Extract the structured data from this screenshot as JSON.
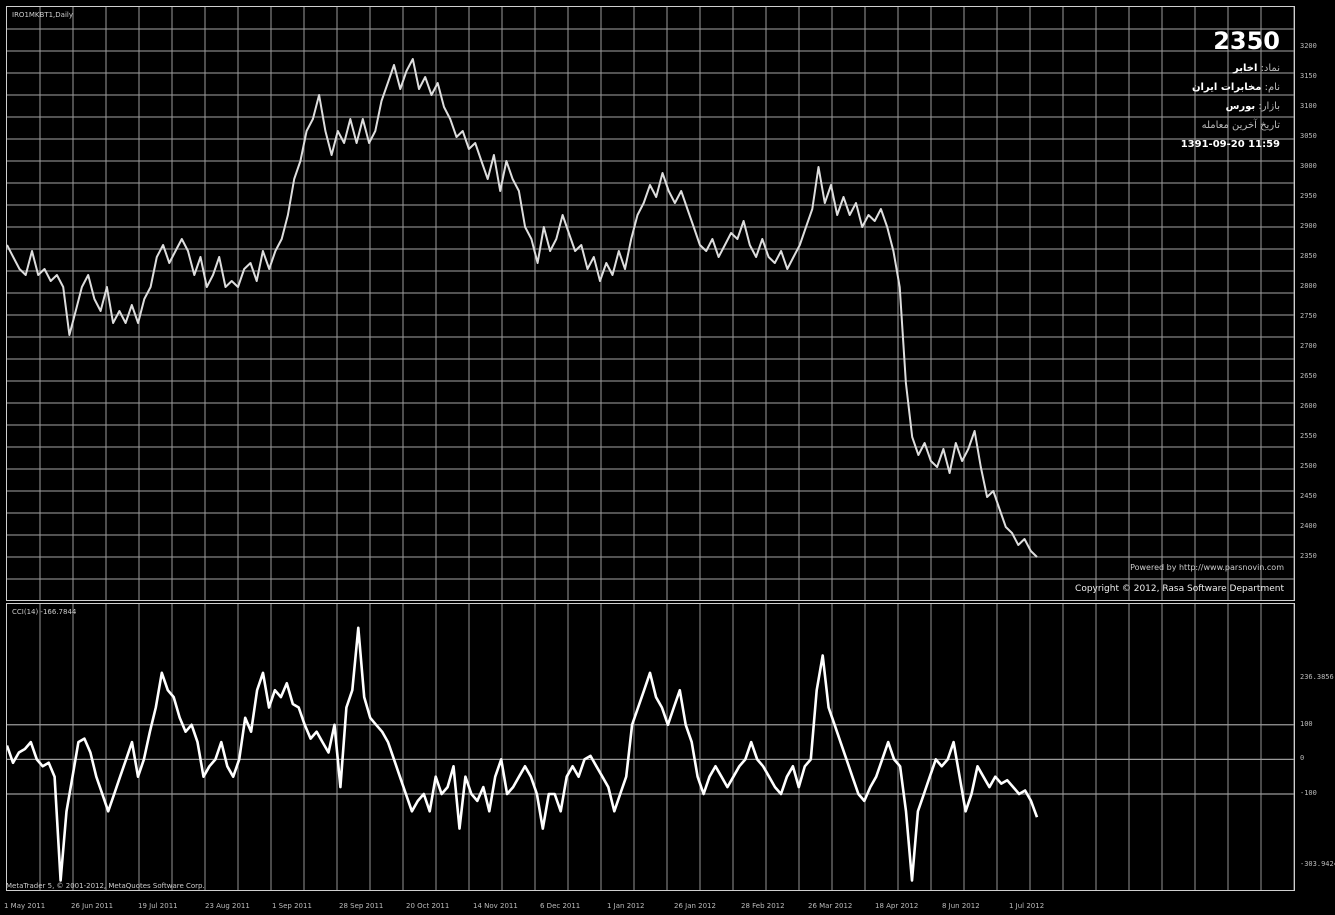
{
  "window": {
    "title": "IRO1MKBT1,Daily",
    "last_price": "2350",
    "branding": "MetaTrader 5, © 2001-2012, MetaQuotes Software Corp."
  },
  "info_panel": {
    "line1_label": "نماد:",
    "line1_value": "اخابر",
    "line2_label": "نام:",
    "line2_value": "مخابرات ایران",
    "line3_label": "بازار:",
    "line3_value": "بورس",
    "line4": "تاریخ آخرین معامله",
    "datetime": "1391-09-20  11:59"
  },
  "notice": "Powered by http://www.parsnovin.com",
  "copyright": "Copyright © 2012, Rasa Software Department",
  "indicator": {
    "title": "CCI(14) -166.7844"
  },
  "colors": {
    "background": "#000000",
    "grid": "#9a9a9a",
    "line": "#dddddd",
    "cci": "#ffffff"
  },
  "chart_data": [
    {
      "type": "line",
      "title": "IRO1MKBT1,Daily",
      "ylim": [
        2300,
        3200
      ],
      "yticks": [
        3200,
        3150,
        3100,
        3050,
        3000,
        2950,
        2900,
        2850,
        2800,
        2750,
        2700,
        2650,
        2600,
        2550,
        2500,
        2450,
        2400,
        2350
      ],
      "x_labels": [
        "1 May 2011",
        "26 Jun 2011",
        "19 Jul 2011",
        "23 Aug 2011",
        "1 Sep 2011",
        "28 Sep 2011",
        "20 Oct 2011",
        "14 Nov 2011",
        "6 Dec 2011",
        "1 Jan 2012",
        "26 Jan 2012",
        "28 Feb 2012",
        "26 Mar 2012",
        "18 Apr 2012",
        "8 Jun 2012",
        "1 Jul 2012"
      ],
      "series": [
        {
          "values": [
            2870,
            2850,
            2830,
            2820,
            2860,
            2820,
            2830,
            2810,
            2820,
            2800,
            2720,
            2760,
            2800,
            2820,
            2780,
            2760,
            2800,
            2740,
            2760,
            2740,
            2770,
            2740,
            2780,
            2800,
            2850,
            2870,
            2840,
            2860,
            2880,
            2860,
            2820,
            2850,
            2800,
            2820,
            2850,
            2800,
            2810,
            2800,
            2830,
            2840,
            2810,
            2860,
            2830,
            2860,
            2880,
            2920,
            2980,
            3010,
            3060,
            3080,
            3120,
            3060,
            3020,
            3060,
            3040,
            3080,
            3040,
            3080,
            3040,
            3060,
            3110,
            3140,
            3170,
            3130,
            3160,
            3180,
            3130,
            3150,
            3120,
            3140,
            3100,
            3080,
            3050,
            3060,
            3030,
            3040,
            3010,
            2980,
            3020,
            2960,
            3010,
            2980,
            2960,
            2900,
            2880,
            2840,
            2900,
            2860,
            2880,
            2920,
            2890,
            2860,
            2870,
            2830,
            2850,
            2810,
            2840,
            2820,
            2860,
            2830,
            2880,
            2920,
            2940,
            2970,
            2950,
            2990,
            2960,
            2940,
            2960,
            2930,
            2900,
            2870,
            2860,
            2880,
            2850,
            2870,
            2890,
            2880,
            2910,
            2870,
            2850,
            2880,
            2850,
            2840,
            2860,
            2830,
            2850,
            2870,
            2900,
            2930,
            3000,
            2940,
            2970,
            2920,
            2950,
            2920,
            2940,
            2900,
            2920,
            2910,
            2930,
            2900,
            2860,
            2800,
            2640,
            2550,
            2520,
            2540,
            2510,
            2500,
            2530,
            2490,
            2540,
            2510,
            2530,
            2560,
            2500,
            2450,
            2460,
            2430,
            2400,
            2390,
            2370,
            2380,
            2360,
            2350
          ]
        }
      ]
    },
    {
      "type": "line",
      "title": "CCI(14) -166.7844",
      "ylim": [
        -360,
        420
      ],
      "yticks": [
        236.3856,
        100,
        0,
        -100,
        -303.9424
      ],
      "series": [
        {
          "name": "CCI(14)",
          "values": [
            40,
            -10,
            20,
            30,
            50,
            0,
            -20,
            -10,
            -50,
            -350,
            -150,
            -50,
            50,
            60,
            20,
            -50,
            -100,
            -150,
            -100,
            -50,
            0,
            50,
            -50,
            0,
            80,
            150,
            250,
            200,
            180,
            120,
            80,
            100,
            50,
            -50,
            -20,
            0,
            50,
            -20,
            -50,
            0,
            120,
            80,
            200,
            250,
            150,
            200,
            180,
            220,
            160,
            150,
            100,
            60,
            80,
            50,
            20,
            100,
            -80,
            150,
            200,
            380,
            180,
            120,
            100,
            80,
            50,
            0,
            -50,
            -100,
            -150,
            -120,
            -100,
            -150,
            -50,
            -100,
            -80,
            -20,
            -200,
            -50,
            -100,
            -120,
            -80,
            -150,
            -50,
            0,
            -100,
            -80,
            -50,
            -20,
            -50,
            -100,
            -200,
            -100,
            -100,
            -150,
            -50,
            -20,
            -50,
            0,
            10,
            -20,
            -50,
            -80,
            -150,
            -100,
            -50,
            100,
            150,
            200,
            250,
            180,
            150,
            100,
            150,
            200,
            100,
            50,
            -50,
            -100,
            -50,
            -20,
            -50,
            -80,
            -50,
            -20,
            0,
            50,
            0,
            -20,
            -50,
            -80,
            -100,
            -50,
            -20,
            -80,
            -20,
            0,
            200,
            300,
            150,
            100,
            50,
            0,
            -50,
            -100,
            -120,
            -80,
            -50,
            0,
            50,
            0,
            -20,
            -150,
            -350,
            -150,
            -100,
            -50,
            0,
            -20,
            0,
            50,
            -50,
            -150,
            -100,
            -20,
            -50,
            -80,
            -50,
            -70,
            -60,
            -80,
            -100,
            -90,
            -120,
            -167
          ]
        }
      ]
    }
  ]
}
